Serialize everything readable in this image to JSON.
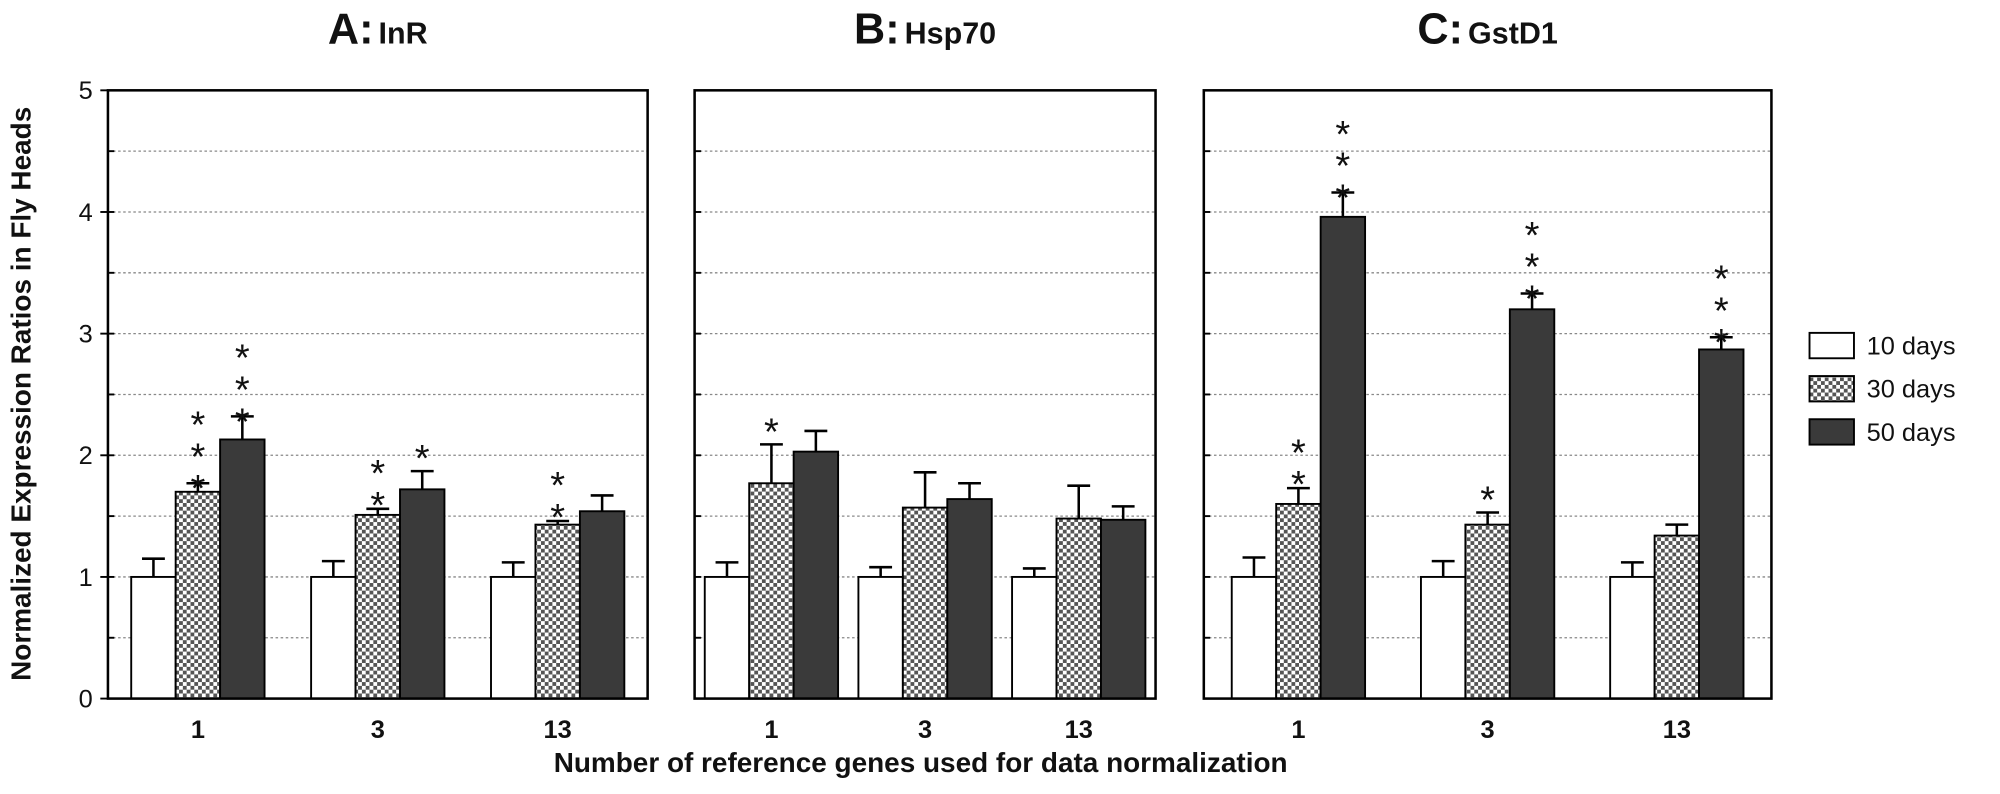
{
  "ylabel": "Normalized Expression Ratios in Fly Heads",
  "xlabel": "Number of reference genes used for data normalization",
  "chart_data": [
    {
      "type": "bar",
      "panel_letter": "A:",
      "title": "InR",
      "categories": [
        "1",
        "3",
        "13"
      ],
      "ylim": [
        0,
        5
      ],
      "yticks": [
        0,
        1,
        2,
        3,
        4,
        5
      ],
      "minor_yticks": [
        0.5,
        1,
        1.5,
        2,
        2.5,
        3,
        3.5,
        4,
        4.5
      ],
      "grid": true,
      "series": [
        {
          "name": "10 days",
          "color": "#ffffff",
          "values": [
            1,
            1,
            1
          ],
          "errors": [
            0.15,
            0.13,
            0.12
          ],
          "significance": [
            null,
            null,
            null
          ]
        },
        {
          "name": "30 days",
          "color": "#555555",
          "pattern": "checkerboard",
          "values": [
            1.7,
            1.51,
            1.43
          ],
          "errors": [
            0.07,
            0.05,
            0.03
          ],
          "significance": [
            "***",
            "**",
            "**"
          ]
        },
        {
          "name": "50 days",
          "color": "#3a3a3a",
          "values": [
            2.13,
            1.72,
            1.54
          ],
          "errors": [
            0.19,
            0.15,
            0.13
          ],
          "significance": [
            "***",
            "*",
            null
          ]
        }
      ]
    },
    {
      "type": "bar",
      "panel_letter": "B:",
      "title": "Hsp70",
      "categories": [
        "1",
        "3",
        "13"
      ],
      "ylim": [
        0,
        5
      ],
      "minor_yticks": [
        0.5,
        1,
        1.5,
        2,
        2.5,
        3,
        3.5,
        4,
        4.5
      ],
      "grid": true,
      "series": [
        {
          "name": "10 days",
          "color": "#ffffff",
          "values": [
            1,
            1,
            1
          ],
          "errors": [
            0.12,
            0.08,
            0.07
          ],
          "significance": [
            null,
            null,
            null
          ]
        },
        {
          "name": "30 days",
          "color": "#555555",
          "pattern": "checkerboard",
          "values": [
            1.77,
            1.57,
            1.48
          ],
          "errors": [
            0.32,
            0.29,
            0.27
          ],
          "significance": [
            "*",
            null,
            null
          ]
        },
        {
          "name": "50 days",
          "color": "#3a3a3a",
          "values": [
            2.03,
            1.64,
            1.47
          ],
          "errors": [
            0.17,
            0.13,
            0.11
          ],
          "significance": [
            null,
            null,
            null
          ]
        }
      ]
    },
    {
      "type": "bar",
      "panel_letter": "C:",
      "title": "GstD1",
      "categories": [
        "1",
        "3",
        "13"
      ],
      "ylim": [
        0,
        5
      ],
      "minor_yticks": [
        0.5,
        1,
        1.5,
        2,
        2.5,
        3,
        3.5,
        4,
        4.5
      ],
      "grid": true,
      "series": [
        {
          "name": "10 days",
          "color": "#ffffff",
          "values": [
            1,
            1,
            1
          ],
          "errors": [
            0.16,
            0.13,
            0.12
          ],
          "significance": [
            null,
            null,
            null
          ]
        },
        {
          "name": "30 days",
          "color": "#555555",
          "pattern": "checkerboard",
          "values": [
            1.6,
            1.43,
            1.34
          ],
          "errors": [
            0.13,
            0.1,
            0.09
          ],
          "significance": [
            "**",
            "*",
            null
          ]
        },
        {
          "name": "50 days",
          "color": "#3a3a3a",
          "values": [
            3.96,
            3.2,
            2.87
          ],
          "errors": [
            0.2,
            0.13,
            0.1
          ],
          "significance": [
            "***",
            "***",
            "***"
          ]
        }
      ]
    }
  ]
}
